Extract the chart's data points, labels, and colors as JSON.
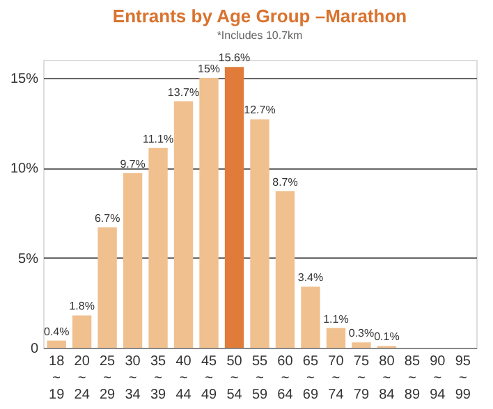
{
  "chart_data": {
    "type": "bar",
    "title": "Entrants by Age Group –Marathon",
    "subtitle": "*Includes 10.7km",
    "categories": [
      "18 ~ 19",
      "20 ~ 24",
      "25 ~ 29",
      "30 ~ 34",
      "35 ~ 39",
      "40 ~ 44",
      "45 ~ 49",
      "50 ~ 54",
      "55 ~ 59",
      "60 ~ 64",
      "65 ~ 69",
      "70 ~ 74",
      "75 ~ 79",
      "80 ~ 84",
      "85 ~ 89",
      "90 ~ 94",
      "95 ~ 99"
    ],
    "values": [
      0.4,
      1.8,
      6.7,
      9.7,
      11.1,
      13.7,
      15,
      15.6,
      12.7,
      8.7,
      3.4,
      1.1,
      0.3,
      0.1,
      null,
      null,
      null
    ],
    "value_labels": [
      "0.4%",
      "1.8%",
      "6.7%",
      "9.7%",
      "11.1%",
      "13.7%",
      "15%",
      "15.6%",
      "12.7%",
      "8.7%",
      "3.4%",
      "1.1%",
      "0.3%",
      "0.1%",
      null,
      null,
      null
    ],
    "colors": [
      "#f0c08f",
      "#f0c08f",
      "#f0c08f",
      "#f0c08f",
      "#f0c08f",
      "#f0c08f",
      "#f0c08f",
      "#e07b39",
      "#f0c08f",
      "#f0c08f",
      "#f0c08f",
      "#f0c08f",
      "#f0c08f",
      "#f0c08f",
      "#f0c08f",
      "#f0c08f",
      "#f0c08f"
    ],
    "ylim": [
      0,
      16
    ],
    "yticks": [
      0,
      {
        "value": 5,
        "label": "5%"
      },
      {
        "value": 10,
        "label": "10%"
      },
      {
        "value": 15,
        "label": "15%"
      }
    ],
    "grid": "y",
    "legend": false
  }
}
